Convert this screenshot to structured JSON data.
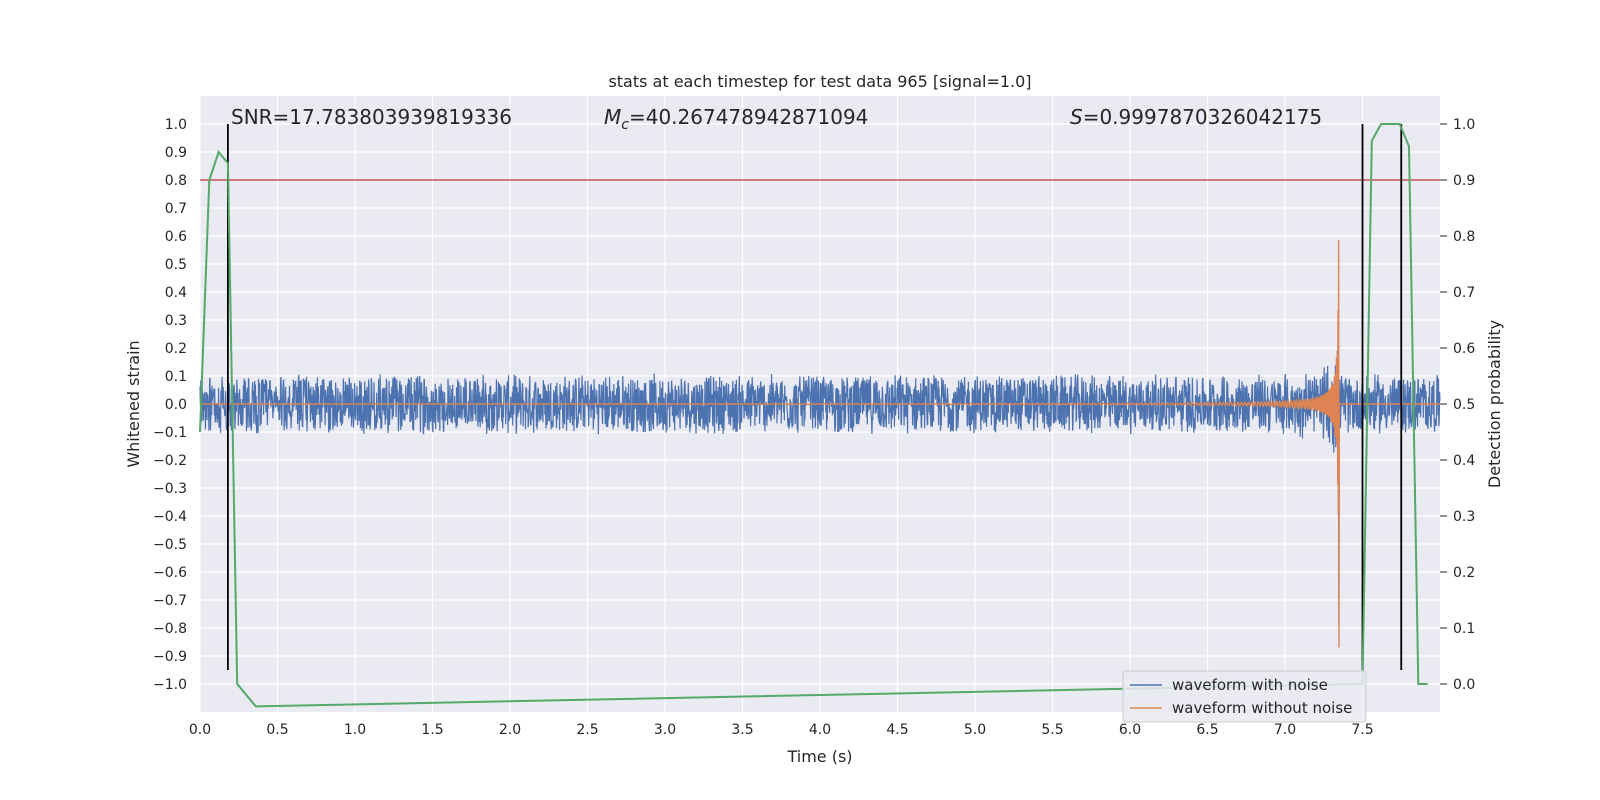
{
  "chart_data": {
    "type": "line",
    "title": "stats at each timestep for test data 965 [signal=1.0]",
    "xlabel": "Time (s)",
    "ylabel": "Whitened strain",
    "y2label": "Detection probability",
    "xlim": [
      0.0,
      8.0
    ],
    "ylim": [
      -1.1,
      1.1
    ],
    "y2lim": [
      -0.05,
      1.05
    ],
    "x_ticks": [
      "0.0",
      "0.5",
      "1.0",
      "1.5",
      "2.0",
      "2.5",
      "3.0",
      "3.5",
      "4.0",
      "4.5",
      "5.0",
      "5.5",
      "6.0",
      "6.5",
      "7.0",
      "7.5"
    ],
    "y_ticks": [
      "1.0",
      "0.9",
      "0.8",
      "0.7",
      "0.6",
      "0.5",
      "0.4",
      "0.3",
      "0.2",
      "0.1",
      "0.0",
      "−0.1",
      "−0.2",
      "−0.3",
      "−0.4",
      "−0.5",
      "−0.6",
      "−0.7",
      "−0.8",
      "−0.9",
      "−1.0"
    ],
    "y2_ticks": [
      "1.0",
      "0.9",
      "0.8",
      "0.7",
      "0.6",
      "0.5",
      "0.4",
      "0.3",
      "0.2",
      "0.1",
      "0.0"
    ],
    "grid": true,
    "legend_placement": "lower-right",
    "annotations": {
      "snr": "SNR=17.783803939819336",
      "mc_symbol": "M",
      "mc_sub": "c",
      "mc_value": "=40.267478942871094",
      "s_symbol": "S",
      "s_value": "=0.9997870326042175"
    },
    "threshold_line": {
      "y2": 0.9,
      "color": "#c44e52"
    },
    "vertical_lines_x": [
      0.18,
      7.5,
      7.75
    ],
    "noise_amplitude": 0.11,
    "merger_time": 7.35,
    "series": [
      {
        "name": "waveform with noise",
        "color": "#4c72b0",
        "axis": "left"
      },
      {
        "name": "waveform without noise",
        "color": "#dd8452",
        "axis": "left"
      },
      {
        "axis": "right",
        "color": "#55a868",
        "x": [
          0.0,
          0.06,
          0.12,
          0.18,
          0.24,
          0.3,
          0.36,
          7.5,
          7.56,
          7.62,
          7.68,
          7.74,
          7.8,
          7.86,
          7.92
        ],
        "values": [
          0.45,
          0.9,
          0.95,
          0.93,
          0.0,
          -0.02,
          -0.04,
          0.0,
          0.97,
          1.0,
          1.0,
          1.0,
          0.96,
          0.0,
          0.0
        ]
      }
    ]
  }
}
